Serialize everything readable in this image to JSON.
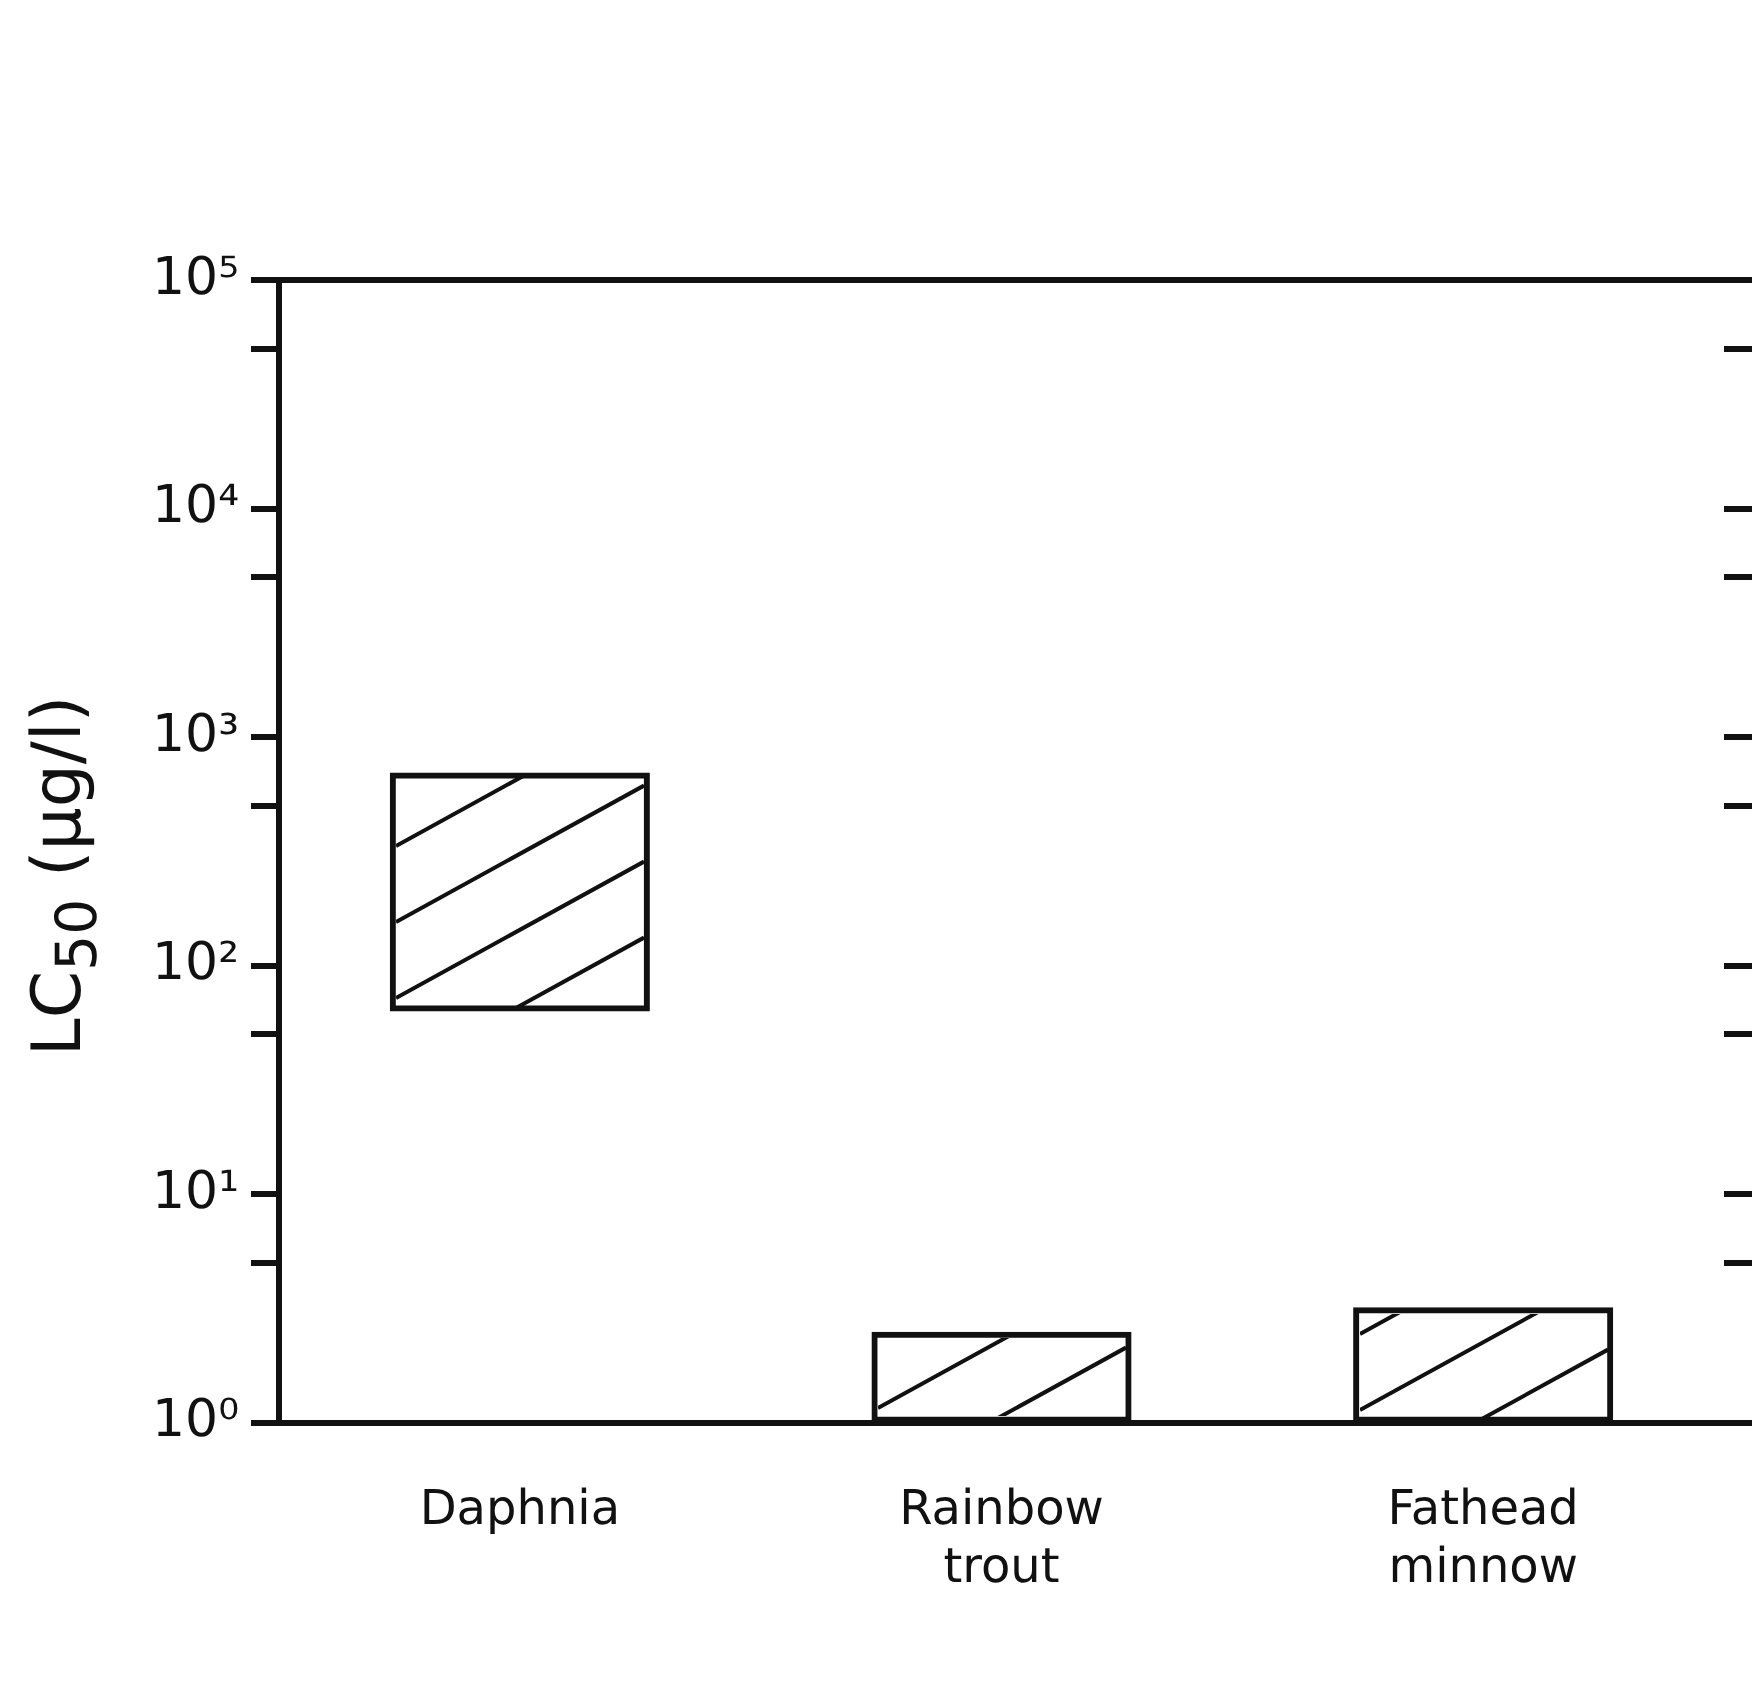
{
  "chart_data": {
    "type": "bar",
    "ylabel": "LC$_{50}$ (μg/l)",
    "categories": [
      "Daphnia",
      "Rainbow trout",
      "Fathead minnow"
    ],
    "base": [
      63,
      1,
      1
    ],
    "values": [
      637,
      1.5,
      2.2
    ],
    "color": "#111111",
    "log": true,
    "ylim": [
      1,
      100000
    ],
    "yticks": [
      {
        "value": 1,
        "label": "10⁰"
      },
      {
        "value": 5,
        "label": null
      },
      {
        "value": 10,
        "label": "10¹"
      },
      {
        "value": 50,
        "label": null
      },
      {
        "value": 100,
        "label": "10²"
      },
      {
        "value": 500,
        "label": null
      },
      {
        "value": 1000,
        "label": "10³"
      },
      {
        "value": 5000,
        "label": null
      },
      {
        "value": 10000,
        "label": "10⁴"
      },
      {
        "value": 50000,
        "label": null
      },
      {
        "value": 100000,
        "label": "10⁵"
      }
    ],
    "grid": false,
    "legend": false
  }
}
